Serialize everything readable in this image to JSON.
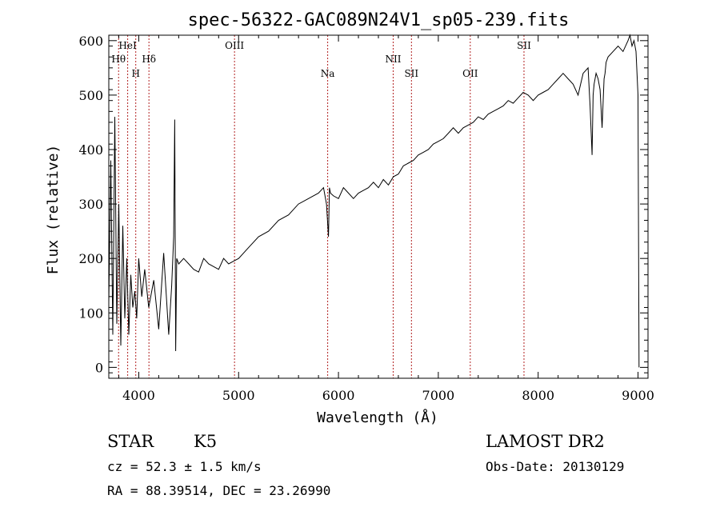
{
  "chart_data": {
    "type": "line",
    "title": "spec-56322-GAC089N24V1_sp05-239.fits",
    "xlabel": "Wavelength (Å)",
    "ylabel": "Flux (relative)",
    "xlim": [
      3700,
      9100
    ],
    "ylim": [
      -20,
      610
    ],
    "xticks": [
      4000,
      5000,
      6000,
      7000,
      8000,
      9000
    ],
    "xtick_labels": [
      "4000",
      "5000",
      "6000",
      "7000",
      "8000",
      "9000"
    ],
    "yticks": [
      0,
      100,
      200,
      300,
      400,
      500,
      600
    ],
    "ytick_labels": [
      "0",
      "100",
      "200",
      "300",
      "400",
      "500",
      "600"
    ],
    "grid": false,
    "line_color": "#000000",
    "marker_color": "#b22222",
    "series": [
      {
        "x": [
          3700,
          3720,
          3740,
          3760,
          3780,
          3800,
          3820,
          3840,
          3860,
          3880,
          3900,
          3920,
          3940,
          3960,
          3980,
          4000,
          4030,
          4060,
          4100,
          4150,
          4200,
          4250,
          4300,
          4330,
          4350,
          4360,
          4370,
          4380,
          4400,
          4450,
          4500,
          4550,
          4600,
          4650,
          4700,
          4750,
          4800,
          4850,
          4900,
          4950,
          5000,
          5100,
          5200,
          5300,
          5400,
          5500,
          5600,
          5700,
          5800,
          5850,
          5880,
          5900,
          5910,
          5920,
          5950,
          6000,
          6050,
          6100,
          6150,
          6200,
          6250,
          6300,
          6350,
          6400,
          6450,
          6500,
          6550,
          6600,
          6650,
          6700,
          6750,
          6800,
          6850,
          6900,
          6950,
          7000,
          7050,
          7100,
          7150,
          7200,
          7250,
          7300,
          7350,
          7400,
          7450,
          7500,
          7550,
          7600,
          7650,
          7700,
          7750,
          7800,
          7850,
          7900,
          7950,
          8000,
          8050,
          8100,
          8150,
          8200,
          8250,
          8300,
          8350,
          8400,
          8450,
          8500,
          8520,
          8540,
          8550,
          8560,
          8580,
          8600,
          8620,
          8640,
          8660,
          8670,
          8680,
          8700,
          8750,
          8800,
          8850,
          8900,
          8920,
          8940,
          8960,
          8980,
          9000,
          9010
        ],
        "y": [
          120,
          380,
          60,
          460,
          80,
          300,
          40,
          260,
          90,
          200,
          60,
          170,
          110,
          140,
          90,
          200,
          130,
          180,
          110,
          160,
          70,
          210,
          60,
          150,
          240,
          455,
          30,
          200,
          190,
          200,
          190,
          180,
          175,
          200,
          190,
          185,
          180,
          200,
          190,
          195,
          200,
          220,
          240,
          250,
          270,
          280,
          300,
          310,
          320,
          330,
          300,
          240,
          330,
          320,
          315,
          310,
          330,
          320,
          310,
          320,
          325,
          330,
          340,
          330,
          345,
          335,
          350,
          355,
          370,
          375,
          380,
          390,
          395,
          400,
          410,
          415,
          420,
          430,
          440,
          430,
          440,
          445,
          450,
          460,
          455,
          465,
          470,
          475,
          480,
          490,
          485,
          495,
          505,
          500,
          490,
          500,
          505,
          510,
          520,
          530,
          540,
          530,
          520,
          500,
          540,
          550,
          480,
          390,
          500,
          520,
          540,
          530,
          510,
          440,
          530,
          540,
          560,
          570,
          580,
          590,
          580,
          600,
          610,
          590,
          600,
          580,
          500,
          0
        ]
      }
    ],
    "lines": [
      {
        "label": "Hθ",
        "x": 3798,
        "row": 2
      },
      {
        "label": "HeI",
        "x": 3889,
        "row": 1
      },
      {
        "label": "H",
        "x": 3970,
        "row": 3
      },
      {
        "label": "Hδ",
        "x": 4102,
        "row": 2
      },
      {
        "label": "OIII",
        "x": 4959,
        "row": 1
      },
      {
        "label": "Na",
        "x": 5892,
        "row": 3
      },
      {
        "label": "NII",
        "x": 6548,
        "row": 2
      },
      {
        "label": "SII",
        "x": 6731,
        "row": 3
      },
      {
        "label": "OII",
        "x": 7320,
        "row": 3
      },
      {
        "label": "SII",
        "x": 7858,
        "row": 1
      }
    ]
  },
  "footer": {
    "object_class": "STAR",
    "subclass": "K5",
    "redshift": "cz = 52.3 ± 1.5 km/s",
    "coords": "RA =  88.39514, DEC =  23.26990",
    "survey": "LAMOST DR2",
    "obs_date": "Obs-Date: 20130129"
  }
}
